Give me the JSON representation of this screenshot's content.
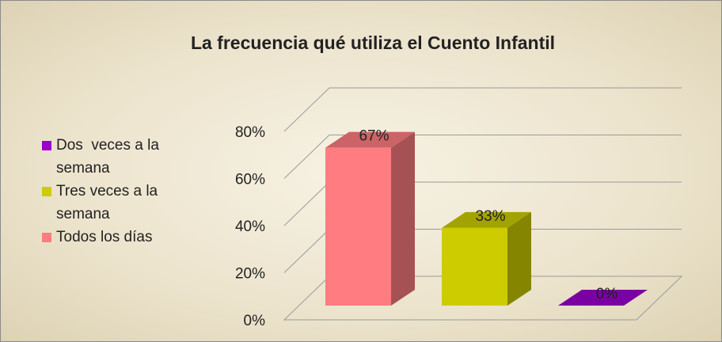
{
  "chart_data": {
    "type": "bar3d",
    "title": "La frecuencia qué utiliza el Cuento Infantil",
    "categories": [
      "Todos los días",
      "Tres veces a la semana",
      "Dos  veces a la semana"
    ],
    "values": [
      67,
      33,
      0
    ],
    "value_labels": [
      "67%",
      "33%",
      "0%"
    ],
    "colors": [
      "#ff7c80",
      "#cccc00",
      "#9900cc"
    ],
    "ylim": [
      0,
      80
    ],
    "yticks": [
      {
        "value": 0,
        "label": "0%"
      },
      {
        "value": 20,
        "label": "20%"
      },
      {
        "value": 40,
        "label": "40%"
      },
      {
        "value": 60,
        "label": "60%"
      },
      {
        "value": 80,
        "label": "80%"
      }
    ],
    "grid": true,
    "legend": "left"
  }
}
